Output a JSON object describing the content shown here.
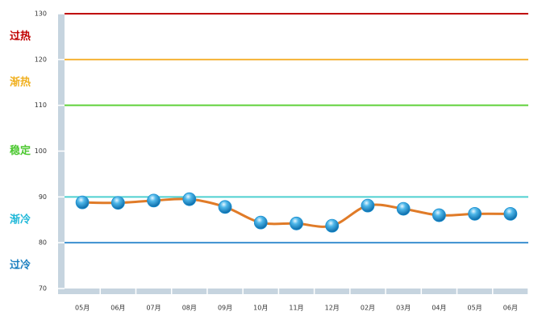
{
  "chart_data": {
    "type": "line",
    "categories": [
      "05月",
      "06月",
      "07月",
      "08月",
      "09月",
      "10月",
      "11月",
      "12月",
      "02月",
      "03月",
      "04月",
      "05月",
      "06月"
    ],
    "series": [
      {
        "color": "#e07b28",
        "marker_color": "#1a8fd0",
        "values": [
          88.8,
          88.7,
          89.2,
          89.5,
          87.8,
          84.4,
          84.2,
          83.7,
          88.1,
          87.4,
          86.0,
          86.3,
          86.3
        ]
      }
    ],
    "ylim": [
      70,
      130
    ],
    "yticks": [
      70,
      80,
      90,
      100,
      110,
      120,
      130
    ],
    "reference_lines": [
      {
        "value": 130,
        "color": "#c00000"
      },
      {
        "value": 120,
        "color": "#f5b335"
      },
      {
        "value": 110,
        "color": "#5fd13a"
      },
      {
        "value": 90,
        "color": "#4fd0d0"
      },
      {
        "value": 80,
        "color": "#3a8fd0"
      }
    ],
    "zones": [
      {
        "label": "过热",
        "range": [
          120,
          130
        ],
        "color": "#c00000"
      },
      {
        "label": "渐热",
        "range": [
          110,
          120
        ],
        "color": "#f0b020"
      },
      {
        "label": "稳定",
        "range": [
          90,
          110
        ],
        "color": "#4cc830"
      },
      {
        "label": "渐冷",
        "range": [
          80,
          90
        ],
        "color": "#20b8d8"
      },
      {
        "label": "过冷",
        "range": [
          70,
          80
        ],
        "color": "#1a7fc0"
      }
    ]
  }
}
